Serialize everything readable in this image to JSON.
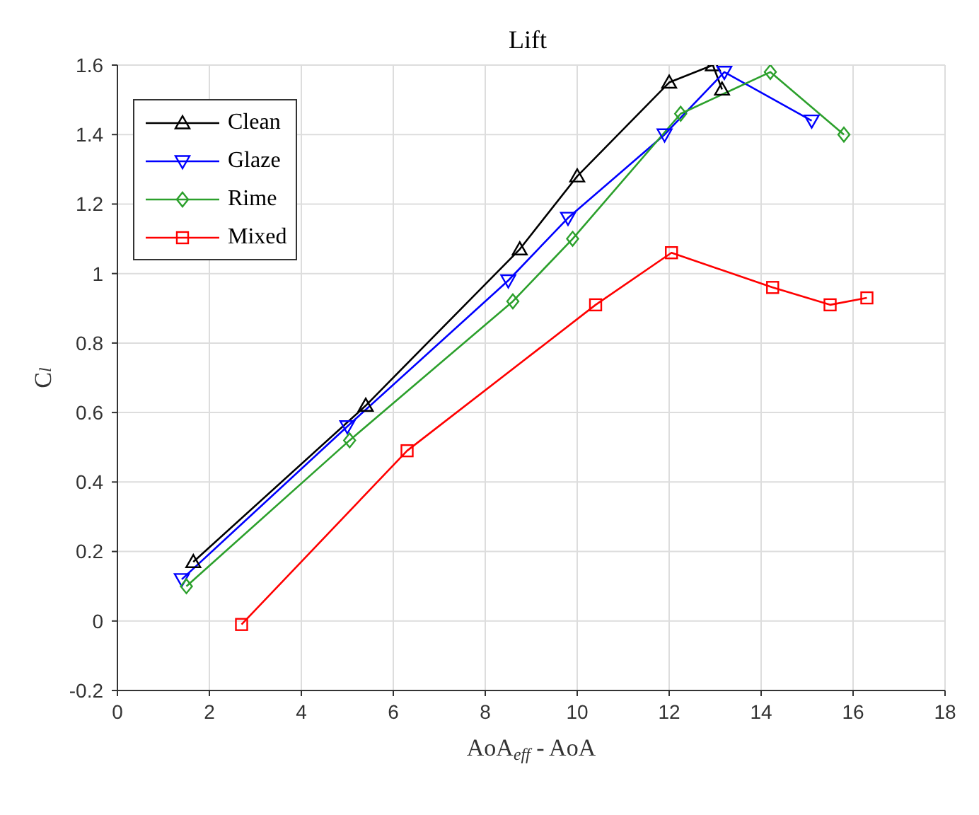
{
  "chart_data": {
    "type": "line",
    "title": "Lift",
    "xlabel": "AoA$_{eff}$ - AoA",
    "ylabel": "C$_{l}$",
    "xlim": [
      0,
      18
    ],
    "xticks": [
      0,
      2,
      4,
      6,
      8,
      10,
      12,
      14,
      16,
      18
    ],
    "ylim": [
      -0.2,
      1.6
    ],
    "yticks": [
      -0.2,
      0,
      0.2,
      0.4,
      0.6,
      0.8,
      1,
      1.2,
      1.4,
      1.6
    ],
    "grid": true,
    "legend": "top left",
    "line_style": "solid",
    "series": [
      {
        "name": "Clean",
        "color": "#000000",
        "marker": "triangle",
        "x": [
          1.65,
          5.4,
          8.75,
          10,
          12,
          12.95,
          13.15
        ],
        "values": [
          0.17,
          0.62,
          1.07,
          1.28,
          1.55,
          1.6,
          1.53
        ]
      },
      {
        "name": "Glaze",
        "color": "#0000ff",
        "marker": "triangle-down",
        "x": [
          1.4,
          5.0,
          8.5,
          9.8,
          11.9,
          13.2,
          15.1
        ],
        "values": [
          0.12,
          0.56,
          0.98,
          1.16,
          1.4,
          1.58,
          1.44
        ]
      },
      {
        "name": "Rime",
        "color": "#2ca02c",
        "marker": "diamond",
        "x": [
          1.5,
          5.05,
          8.6,
          9.9,
          12.25,
          14.2,
          15.8
        ],
        "values": [
          0.1,
          0.52,
          0.92,
          1.1,
          1.46,
          1.58,
          1.4
        ]
      },
      {
        "name": "Mixed",
        "color": "#ff0000",
        "marker": "square",
        "x": [
          2.7,
          6.3,
          10.4,
          12.05,
          14.25,
          15.5,
          16.3
        ],
        "values": [
          -0.01,
          0.49,
          0.91,
          1.06,
          0.96,
          0.91,
          0.93
        ]
      }
    ]
  }
}
